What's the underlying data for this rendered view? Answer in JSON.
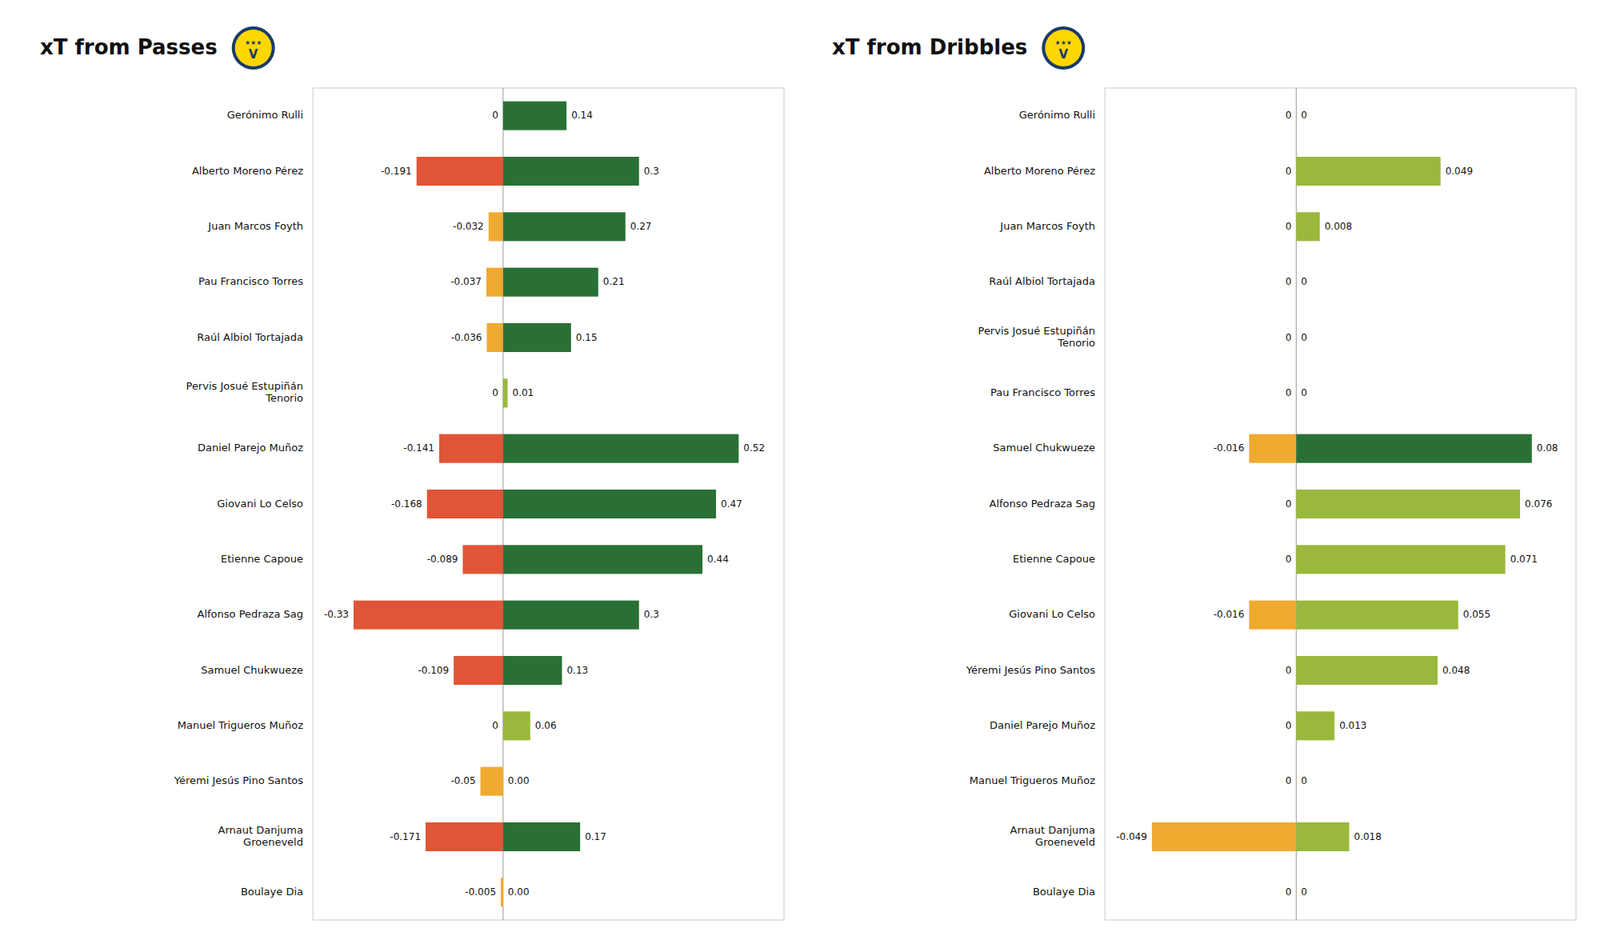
{
  "chart_data": [
    {
      "type": "bar",
      "orientation": "horizontal",
      "title": "xT from Passes",
      "annotations": [
        "★★★",
        "V"
      ],
      "categories": [
        "Gerónimo Rulli",
        "Alberto Moreno Pérez",
        "Juan Marcos Foyth",
        "Pau Francisco Torres",
        "Raúl Albiol Tortajada",
        "Pervis Josué Estupiñán\nTenorio",
        "Daniel Parejo Muñoz",
        "Giovani Lo Celso",
        "Etienne Capoue",
        "Alfonso Pedraza Sag",
        "Samuel Chukwueze",
        "Manuel Trigueros Muñoz",
        "Yéremi Jesús Pino Santos",
        "Arnaut Danjuma\nGroeneveld",
        "Boulaye Dia"
      ],
      "series": [
        {
          "values": [
            0,
            -0.191,
            -0.032,
            -0.037,
            -0.036,
            0,
            -0.141,
            -0.168,
            -0.089,
            -0.33,
            -0.109,
            0,
            -0.05,
            -0.171,
            -0.005
          ],
          "value_labels": [
            "0",
            "-0.191",
            "-0.032",
            "-0.037",
            "-0.036",
            "0",
            "-0.141",
            "-0.168",
            "-0.089",
            "-0.33",
            "-0.109",
            "0",
            "-0.05",
            "-0.171",
            "-0.005"
          ],
          "colors": [
            "#f0aa30",
            "#e05535",
            "#f0aa30",
            "#f0aa30",
            "#f0aa30",
            "#f0aa30",
            "#e05535",
            "#e05535",
            "#e05535",
            "#e05535",
            "#e05535",
            "#f0aa30",
            "#f0aa30",
            "#e05535",
            "#f0aa30"
          ]
        },
        {
          "values": [
            0.14,
            0.3,
            0.27,
            0.21,
            0.15,
            0.01,
            0.52,
            0.47,
            0.44,
            0.3,
            0.13,
            0.06,
            0,
            0.17,
            0
          ],
          "value_labels": [
            "0.14",
            "0.3",
            "0.27",
            "0.21",
            "0.15",
            "0.01",
            "0.52",
            "0.47",
            "0.44",
            "0.3",
            "0.13",
            "0.06",
            "0.00",
            "0.17",
            "0.00"
          ],
          "colors": [
            "#2a7035",
            "#2a7035",
            "#2a7035",
            "#2a7035",
            "#2a7035",
            "#9ab83c",
            "#2a7035",
            "#2a7035",
            "#2a7035",
            "#2a7035",
            "#2a7035",
            "#9ab83c",
            "#9ab83c",
            "#2a7035",
            "#9ab83c"
          ]
        }
      ],
      "xlim": [
        -0.42,
        0.62
      ],
      "data_labels": true,
      "tick_labels": false,
      "grid": false
    },
    {
      "type": "bar",
      "orientation": "horizontal",
      "title": "xT from Dribbles",
      "annotations": [
        "★★★",
        "V"
      ],
      "categories": [
        "Gerónimo Rulli",
        "Alberto Moreno Pérez",
        "Juan Marcos Foyth",
        "Raúl Albiol Tortajada",
        "Pervis Josué Estupiñán\nTenorio",
        "Pau Francisco Torres",
        "Samuel Chukwueze",
        "Alfonso Pedraza Sag",
        "Etienne Capoue",
        "Giovani Lo Celso",
        "Yéremi Jesús Pino Santos",
        "Daniel Parejo Muñoz",
        "Manuel Trigueros Muñoz",
        "Arnaut Danjuma\nGroeneveld",
        "Boulaye Dia"
      ],
      "series": [
        {
          "values": [
            0,
            0,
            0,
            0,
            0,
            0,
            -0.016,
            0,
            0,
            -0.016,
            0,
            0,
            0,
            -0.049,
            0
          ],
          "value_labels": [
            "0",
            "0",
            "0",
            "0",
            "0",
            "0",
            "-0.016",
            "0",
            "0",
            "-0.016",
            "0",
            "0",
            "0",
            "-0.049",
            "0"
          ],
          "colors": [
            "#f0aa30",
            "#f0aa30",
            "#f0aa30",
            "#f0aa30",
            "#f0aa30",
            "#f0aa30",
            "#f0aa30",
            "#f0aa30",
            "#f0aa30",
            "#f0aa30",
            "#f0aa30",
            "#f0aa30",
            "#f0aa30",
            "#f0aa30",
            "#f0aa30"
          ]
        },
        {
          "values": [
            0,
            0.049,
            0.008,
            0,
            0,
            0,
            0.08,
            0.076,
            0.071,
            0.055,
            0.048,
            0.013,
            0,
            0.018,
            0
          ],
          "value_labels": [
            "0",
            "0.049",
            "0.008",
            "0",
            "0",
            "0",
            "0.08",
            "0.076",
            "0.071",
            "0.055",
            "0.048",
            "0.013",
            "0",
            "0.018",
            "0"
          ],
          "colors": [
            "#9ab83c",
            "#9ab83c",
            "#9ab83c",
            "#9ab83c",
            "#9ab83c",
            "#9ab83c",
            "#2a7035",
            "#9ab83c",
            "#9ab83c",
            "#9ab83c",
            "#9ab83c",
            "#9ab83c",
            "#9ab83c",
            "#9ab83c",
            "#9ab83c"
          ]
        }
      ],
      "xlim": [
        -0.065,
        0.095
      ],
      "data_labels": true,
      "tick_labels": false,
      "grid": false
    }
  ]
}
